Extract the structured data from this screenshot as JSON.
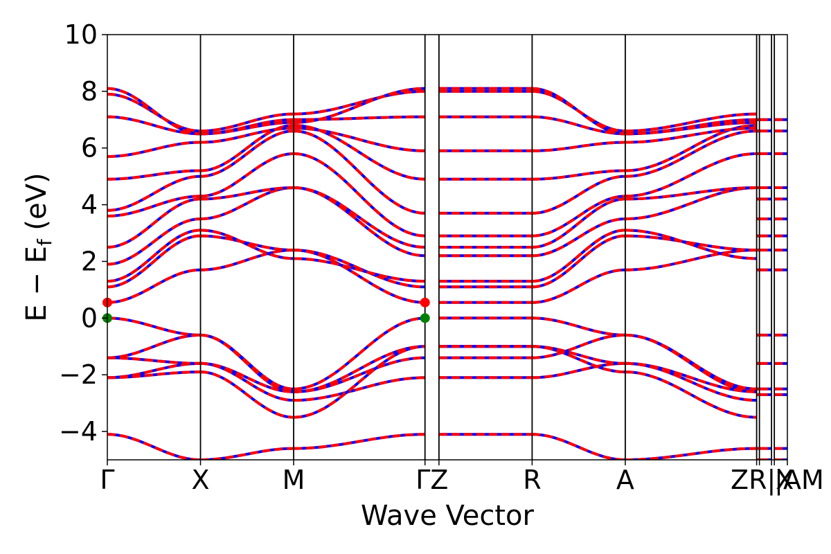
{
  "chart_data": {
    "type": "line",
    "title": "",
    "xlabel": "Wave Vector",
    "ylabel": "E − E_f (eV)",
    "ylabel_main": "E − E",
    "ylabel_sub": "f",
    "ylabel_unit": " (eV)",
    "ylim": [
      -5,
      10
    ],
    "yticks": [
      10,
      8,
      6,
      4,
      2,
      0,
      -2,
      -4
    ],
    "ytick_labels": [
      "10",
      "8",
      "6",
      "4",
      "2",
      "0",
      "−2",
      "−4"
    ],
    "xlim": [
      0,
      7.3
    ],
    "kpoints": [
      {
        "label": "Γ",
        "x": 0.0
      },
      {
        "label": "X",
        "x": 1.0
      },
      {
        "label": "M",
        "x": 2.0
      },
      {
        "label": "Γ",
        "x": 3.41
      },
      {
        "label": "Z",
        "x": 3.56
      },
      {
        "label": "R",
        "x": 4.56
      },
      {
        "label": "A",
        "x": 5.56
      },
      {
        "label": "Z",
        "x": 6.97
      },
      {
        "label": "R",
        "x": 7.0
      },
      {
        "label": "X",
        "x": 7.13
      },
      {
        "label": "A",
        "x": 7.16
      },
      {
        "label": "M",
        "x": 7.3
      }
    ],
    "xtick_text": [
      {
        "text": "Γ",
        "x": 0.0,
        "anchor": "middle"
      },
      {
        "text": "X",
        "x": 1.0,
        "anchor": "middle"
      },
      {
        "text": "M",
        "x": 2.0,
        "anchor": "middle"
      },
      {
        "text": "ΓZ",
        "x": 3.485,
        "anchor": "middle"
      },
      {
        "text": "R",
        "x": 4.56,
        "anchor": "middle"
      },
      {
        "text": "A",
        "x": 5.56,
        "anchor": "middle"
      },
      {
        "text": "ZR|X",
        "x": 7.03,
        "anchor": "middle"
      },
      {
        "text": "|AM",
        "x": 7.16,
        "anchor": "start"
      }
    ],
    "series": [
      {
        "name": "",
        "color": "#0000ff",
        "style": "solid"
      },
      {
        "name": "",
        "color": "#ff0000",
        "style": "dashed"
      }
    ],
    "valence_bands_eV": [
      {
        "Gamma": 0.0,
        "X": -0.6,
        "M": -2.5,
        "Gamma2": 0.0
      },
      {
        "Gamma": -1.4,
        "X": -0.6,
        "M": -2.6,
        "Gamma2": -1.4
      },
      {
        "Gamma": -2.1,
        "X": -1.6,
        "M": -2.9,
        "Gamma2": -2.1
      },
      {
        "Gamma": -4.1,
        "X": -5.0,
        "M": -4.6,
        "Gamma2": -4.1
      }
    ],
    "markers": [
      {
        "x": 0.0,
        "y": 0.0,
        "color": "#008000",
        "label": "VBM"
      },
      {
        "x": 0.0,
        "y": 0.55,
        "color": "#ff0000",
        "label": "CBM"
      },
      {
        "x": 3.41,
        "y": 0.0,
        "color": "#008000",
        "label": "VBM"
      },
      {
        "x": 3.41,
        "y": 0.55,
        "color": "#ff0000",
        "label": "CBM"
      }
    ],
    "grid": false,
    "legend": "none"
  }
}
